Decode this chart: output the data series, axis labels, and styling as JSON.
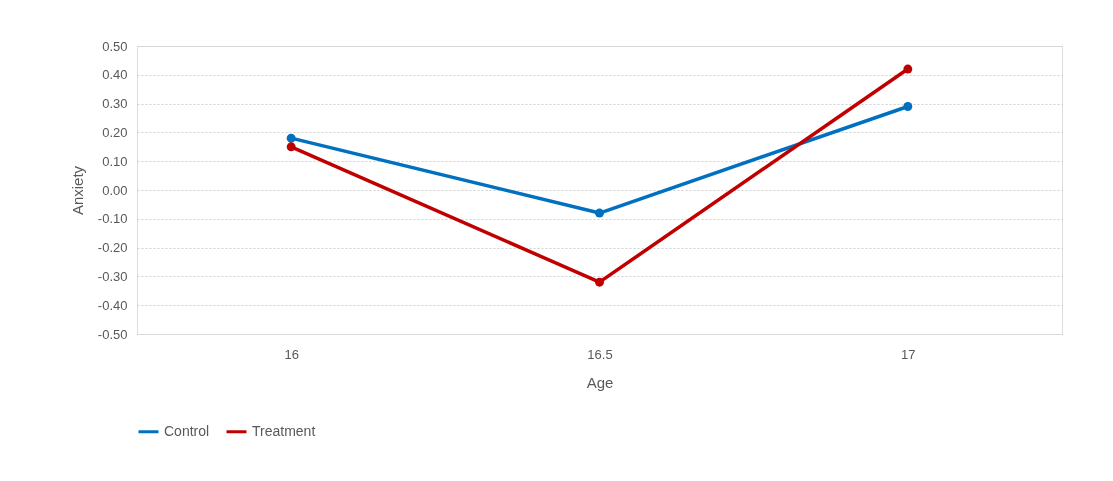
{
  "chart_data": {
    "type": "line",
    "xlabel": "Age",
    "ylabel": "Anxiety",
    "categories": [
      "16",
      "16.5",
      "17"
    ],
    "series": [
      {
        "name": "Control",
        "color": "#0070c0",
        "values": [
          0.18,
          -0.08,
          0.29
        ]
      },
      {
        "name": "Treatment",
        "color": "#c00000",
        "values": [
          0.15,
          -0.32,
          0.42
        ]
      }
    ],
    "ylim": [
      -0.5,
      0.5
    ],
    "yticks": [
      {
        "value": -0.5,
        "label": "-0.50"
      },
      {
        "value": -0.4,
        "label": "-0.40"
      },
      {
        "value": -0.3,
        "label": "-0.30"
      },
      {
        "value": -0.2,
        "label": "-0.20"
      },
      {
        "value": -0.1,
        "label": "-0.10"
      },
      {
        "value": 0,
        "label": "0.00"
      },
      {
        "value": 0.1,
        "label": "0.10"
      },
      {
        "value": 0.2,
        "label": "0.20"
      },
      {
        "value": 0.3,
        "label": "0.30"
      },
      {
        "value": 0.4,
        "label": "0.40"
      },
      {
        "value": 0.5,
        "label": "0.50"
      }
    ],
    "grid": "y",
    "legend": "bottom",
    "marker": "circle",
    "line_style": "solid"
  }
}
